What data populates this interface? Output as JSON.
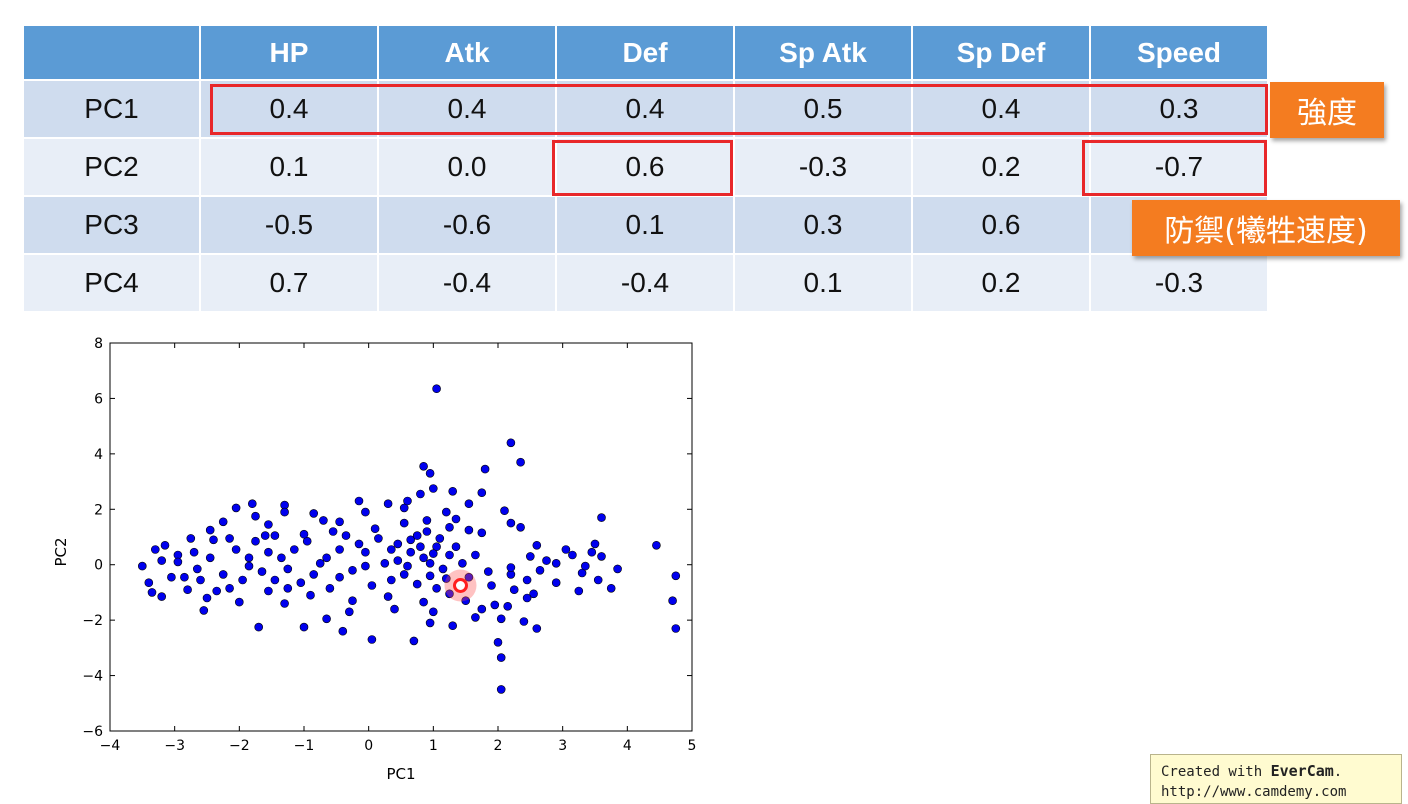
{
  "table": {
    "headers": [
      "",
      "HP",
      "Atk",
      "Def",
      "Sp Atk",
      "Sp Def",
      "Speed"
    ],
    "rows": [
      {
        "label": "PC1",
        "values": [
          "0.4",
          "0.4",
          "0.4",
          "0.5",
          "0.4",
          "0.3"
        ]
      },
      {
        "label": "PC2",
        "values": [
          "0.1",
          "0.0",
          "0.6",
          "-0.3",
          "0.2",
          "-0.7"
        ]
      },
      {
        "label": "PC3",
        "values": [
          "-0.5",
          "-0.6",
          "0.1",
          "0.3",
          "0.6",
          ""
        ]
      },
      {
        "label": "PC4",
        "values": [
          "0.7",
          "-0.4",
          "-0.4",
          "0.1",
          "0.2",
          "-0.3"
        ]
      }
    ]
  },
  "annotations": {
    "strength_label": "強度",
    "defense_label": "防禦(犧牲速度)"
  },
  "colors": {
    "header_bg": "#5b9bd5",
    "row_odd": "#cfdcee",
    "row_even": "#e8eef7",
    "highlight_box": "#e8272a",
    "callout_bg": "#f47c20",
    "points": "#0000ee",
    "highlight_point": "#ff2020"
  },
  "chart_data": {
    "type": "scatter",
    "title": "",
    "xlabel": "PC1",
    "ylabel": "PC2",
    "xlim": [
      -4,
      5
    ],
    "ylim": [
      -6,
      8
    ],
    "xticks": [
      "−4",
      "−3",
      "−2",
      "−1",
      "0",
      "1",
      "2",
      "3",
      "4",
      "5"
    ],
    "yticks": [
      "−6",
      "−4",
      "−2",
      "0",
      "2",
      "4",
      "6",
      "8"
    ],
    "grid": false,
    "highlight_point": [
      1.42,
      -0.75
    ],
    "points": [
      [
        1.05,
        6.35
      ],
      [
        2.2,
        4.4
      ],
      [
        2.35,
        3.7
      ],
      [
        1.8,
        3.45
      ],
      [
        0.85,
        3.55
      ],
      [
        0.95,
        3.3
      ],
      [
        1.3,
        2.65
      ],
      [
        0.8,
        2.55
      ],
      [
        1.0,
        2.75
      ],
      [
        1.75,
        2.6
      ],
      [
        0.3,
        2.2
      ],
      [
        -0.15,
        2.3
      ],
      [
        -1.3,
        2.15
      ],
      [
        -1.8,
        2.2
      ],
      [
        -2.05,
        2.05
      ],
      [
        -1.3,
        1.9
      ],
      [
        -0.85,
        1.85
      ],
      [
        -0.45,
        1.55
      ],
      [
        0.55,
        2.05
      ],
      [
        1.55,
        2.2
      ],
      [
        2.1,
        1.95
      ],
      [
        2.2,
        1.5
      ],
      [
        2.35,
        1.35
      ],
      [
        3.6,
        1.7
      ],
      [
        4.45,
        0.7
      ],
      [
        3.5,
        0.75
      ],
      [
        3.45,
        0.45
      ],
      [
        3.05,
        0.55
      ],
      [
        3.6,
        0.3
      ],
      [
        3.85,
        -0.15
      ],
      [
        3.3,
        -0.3
      ],
      [
        3.55,
        -0.55
      ],
      [
        3.75,
        -0.85
      ],
      [
        3.25,
        -0.95
      ],
      [
        2.9,
        -0.65
      ],
      [
        2.6,
        0.7
      ],
      [
        2.55,
        -1.05
      ],
      [
        2.45,
        -1.2
      ],
      [
        2.15,
        -1.5
      ],
      [
        2.05,
        -1.95
      ],
      [
        1.65,
        -1.9
      ],
      [
        2.4,
        -2.05
      ],
      [
        2.6,
        -2.3
      ],
      [
        2.0,
        -2.8
      ],
      [
        2.05,
        -3.35
      ],
      [
        2.05,
        -4.5
      ],
      [
        4.7,
        -1.3
      ],
      [
        4.75,
        -0.4
      ],
      [
        4.75,
        -2.3
      ],
      [
        -0.4,
        -2.4
      ],
      [
        0.05,
        -2.7
      ],
      [
        0.7,
        -2.75
      ],
      [
        -1.0,
        -2.25
      ],
      [
        -1.7,
        -2.25
      ],
      [
        -2.5,
        -1.2
      ],
      [
        -2.55,
        -1.65
      ],
      [
        -3.2,
        -1.15
      ],
      [
        -3.35,
        -1.0
      ],
      [
        -3.5,
        -0.05
      ],
      [
        -3.4,
        -0.65
      ],
      [
        -3.3,
        0.55
      ],
      [
        -3.15,
        0.7
      ],
      [
        -2.95,
        0.35
      ],
      [
        -2.75,
        0.95
      ],
      [
        -2.45,
        1.25
      ],
      [
        -2.25,
        1.55
      ],
      [
        -1.75,
        1.75
      ],
      [
        -1.55,
        1.45
      ],
      [
        -2.85,
        -0.45
      ],
      [
        -2.65,
        -0.15
      ],
      [
        -0.65,
        -1.95
      ],
      [
        0.95,
        -2.1
      ],
      [
        1.3,
        -2.2
      ],
      [
        1.75,
        -1.6
      ],
      [
        1.95,
        -1.45
      ],
      [
        1.9,
        -0.75
      ],
      [
        2.25,
        -0.9
      ],
      [
        2.2,
        -0.35
      ],
      [
        2.45,
        -0.55
      ],
      [
        2.75,
        0.15
      ],
      [
        2.65,
        -0.2
      ],
      [
        2.5,
        0.3
      ],
      [
        1.55,
        1.25
      ],
      [
        1.75,
        1.15
      ],
      [
        1.25,
        1.35
      ],
      [
        0.55,
        1.5
      ],
      [
        -0.55,
        1.2
      ],
      [
        -1.45,
        1.05
      ],
      [
        -2.4,
        0.9
      ],
      [
        -3.05,
        -0.45
      ],
      [
        -2.15,
        -0.85
      ],
      [
        -1.55,
        -0.95
      ],
      [
        -0.9,
        -1.1
      ],
      [
        -0.25,
        -1.3
      ],
      [
        0.3,
        -1.15
      ],
      [
        0.85,
        -1.35
      ],
      [
        1.25,
        -1.05
      ],
      [
        -1.15,
        0.55
      ],
      [
        -0.65,
        0.25
      ],
      [
        -0.05,
        0.45
      ],
      [
        0.25,
        0.05
      ],
      [
        0.45,
        0.75
      ],
      [
        0.55,
        -0.35
      ],
      [
        0.85,
        0.25
      ],
      [
        1.05,
        0.65
      ],
      [
        1.15,
        -0.15
      ],
      [
        0.65,
        0.9
      ],
      [
        0.75,
        -0.7
      ],
      [
        0.95,
        -0.4
      ],
      [
        1.1,
        0.95
      ],
      [
        0.9,
        1.2
      ],
      [
        0.35,
        -0.55
      ],
      [
        0.15,
        0.95
      ],
      [
        -0.25,
        -0.2
      ],
      [
        -0.45,
        0.55
      ],
      [
        -0.85,
        -0.35
      ],
      [
        -1.25,
        -0.15
      ],
      [
        -1.55,
        0.45
      ],
      [
        -1.85,
        -0.05
      ],
      [
        -2.05,
        0.55
      ],
      [
        -2.25,
        -0.35
      ],
      [
        -2.45,
        0.25
      ],
      [
        -2.6,
        -0.55
      ],
      [
        -1.95,
        -0.55
      ],
      [
        -1.65,
        -0.25
      ],
      [
        -1.35,
        0.25
      ],
      [
        -1.05,
        -0.65
      ],
      [
        -0.75,
        0.05
      ],
      [
        -0.45,
        -0.45
      ],
      [
        -0.15,
        0.75
      ],
      [
        -1.75,
        0.85
      ],
      [
        -2.15,
        0.95
      ],
      [
        -1.45,
        -0.55
      ],
      [
        -0.95,
        0.85
      ],
      [
        -0.35,
        1.05
      ],
      [
        0.05,
        -0.75
      ],
      [
        0.65,
        0.45
      ],
      [
        1.25,
        0.35
      ],
      [
        1.45,
        0.05
      ],
      [
        1.65,
        0.35
      ],
      [
        1.85,
        -0.25
      ],
      [
        1.55,
        -0.45
      ],
      [
        1.35,
        0.65
      ],
      [
        0.45,
        0.15
      ],
      [
        0.75,
        1.05
      ],
      [
        0.95,
        0.05
      ],
      [
        1.05,
        -0.85
      ],
      [
        -2.35,
        -0.95
      ],
      [
        -1.85,
        0.25
      ],
      [
        -1.25,
        -0.85
      ],
      [
        -0.6,
        -0.85
      ],
      [
        -0.05,
        -0.05
      ],
      [
        0.35,
        0.55
      ],
      [
        0.6,
        -0.05
      ],
      [
        0.8,
        0.65
      ],
      [
        1.0,
        0.4
      ],
      [
        1.2,
        -0.5
      ],
      [
        -2.7,
        0.45
      ],
      [
        -2.95,
        0.1
      ],
      [
        -3.2,
        0.15
      ],
      [
        -1.6,
        1.05
      ],
      [
        -1.0,
        1.1
      ],
      [
        0.1,
        1.3
      ],
      [
        0.9,
        1.6
      ],
      [
        1.35,
        1.65
      ],
      [
        1.2,
        1.9
      ],
      [
        0.6,
        2.3
      ],
      [
        -0.05,
        1.9
      ],
      [
        -0.7,
        1.6
      ],
      [
        -2.8,
        -0.9
      ],
      [
        -2.0,
        -1.35
      ],
      [
        -1.3,
        -1.4
      ],
      [
        -0.3,
        -1.7
      ],
      [
        0.4,
        -1.6
      ],
      [
        1.0,
        -1.7
      ],
      [
        1.5,
        -1.3
      ],
      [
        2.2,
        -0.1
      ],
      [
        2.9,
        0.05
      ],
      [
        3.35,
        -0.05
      ],
      [
        3.15,
        0.35
      ]
    ]
  }
}
